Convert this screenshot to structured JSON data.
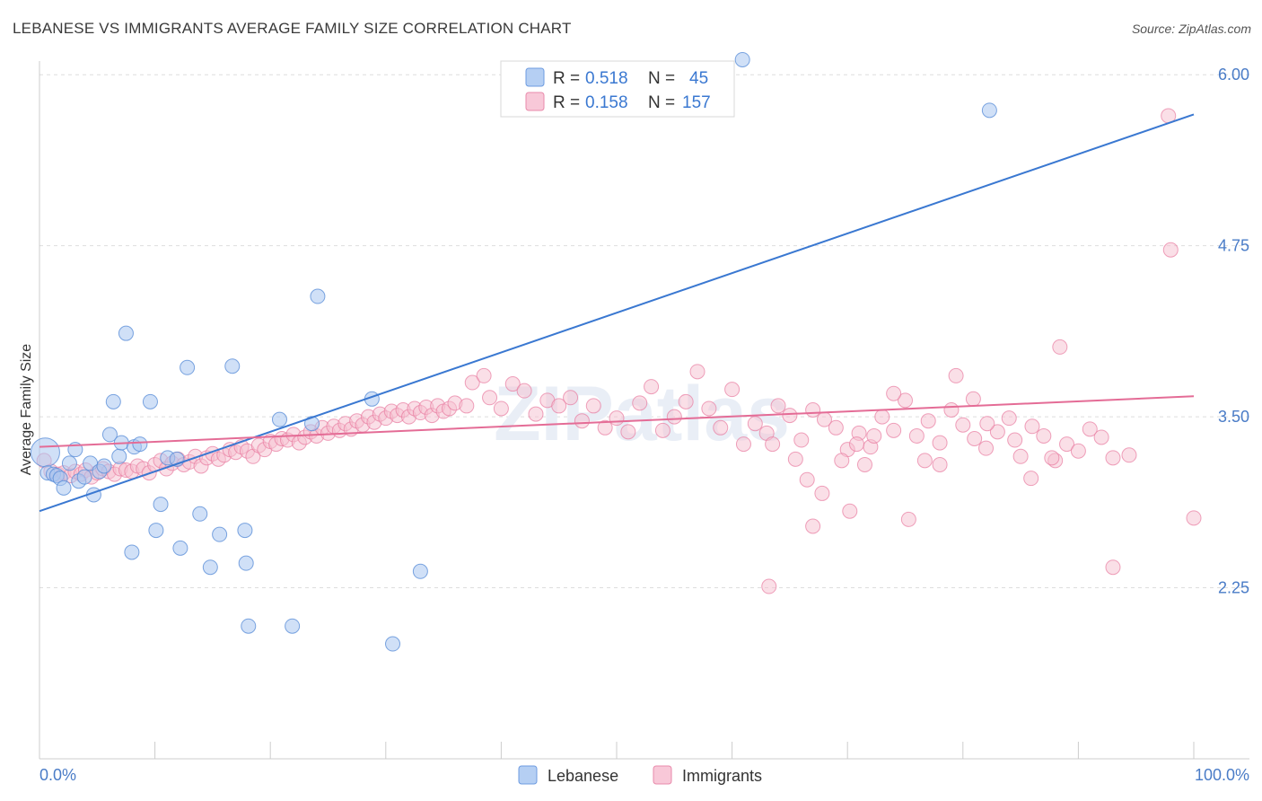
{
  "title": "LEBANESE VS IMMIGRANTS AVERAGE FAMILY SIZE CORRELATION CHART",
  "source": "Source: ZipAtlas.com",
  "watermark": "ZIPatlas",
  "colors": {
    "blue": "#5b8fd8",
    "blue_fill": "#a9c6f0",
    "blue_line": "#3a78d1",
    "pink": "#e87aa0",
    "pink_fill": "#f6bfd0",
    "pink_line": "#e46c96",
    "axis_text": "#4a7cc7"
  },
  "legend": [
    {
      "series": "Lebanese",
      "r_label": "R =",
      "r_value": "0.518",
      "n_label": "N =",
      "n_value": "45"
    },
    {
      "series": "Immigrants",
      "r_label": "R =",
      "r_value": "0.158",
      "n_label": "N =",
      "n_value": "157"
    }
  ],
  "chart_data": {
    "type": "scatter",
    "title": "LEBANESE VS IMMIGRANTS AVERAGE FAMILY SIZE CORRELATION CHART",
    "xlabel": "",
    "ylabel": "Average Family Size",
    "xlim": [
      0,
      100
    ],
    "ylim": [
      1.0,
      6.1
    ],
    "x_tick_labels": [
      "0.0%",
      "100.0%"
    ],
    "y_ticks": [
      2.25,
      3.5,
      4.75,
      6.0
    ],
    "y_tick_labels": [
      "2.25",
      "3.50",
      "4.75",
      "6.00"
    ],
    "grid": "horizontal dashed",
    "legend_position": "top-center and bottom",
    "series": [
      {
        "name": "Lebanese",
        "color": "#5b8fd8",
        "trend": {
          "x": [
            0,
            100
          ],
          "y": [
            2.81,
            5.71
          ]
        },
        "points": [
          [
            0.5,
            3.24
          ],
          [
            0.7,
            3.09
          ],
          [
            1.2,
            3.08
          ],
          [
            1.5,
            3.07
          ],
          [
            1.8,
            3.05
          ],
          [
            2.1,
            2.98
          ],
          [
            2.6,
            3.16
          ],
          [
            3.1,
            3.26
          ],
          [
            3.4,
            3.03
          ],
          [
            3.9,
            3.06
          ],
          [
            4.4,
            3.16
          ],
          [
            4.7,
            2.93
          ],
          [
            5.2,
            3.1
          ],
          [
            5.6,
            3.14
          ],
          [
            6.1,
            3.37
          ],
          [
            6.4,
            3.61
          ],
          [
            6.9,
            3.21
          ],
          [
            7.1,
            3.31
          ],
          [
            7.5,
            4.11
          ],
          [
            8.2,
            3.28
          ],
          [
            8.7,
            3.3
          ],
          [
            9.6,
            3.61
          ],
          [
            10.5,
            2.86
          ],
          [
            11.1,
            3.2
          ],
          [
            11.9,
            3.19
          ],
          [
            12.8,
            3.86
          ],
          [
            13.9,
            2.79
          ],
          [
            14.8,
            2.4
          ],
          [
            15.6,
            2.64
          ],
          [
            16.7,
            3.87
          ],
          [
            17.9,
            2.43
          ],
          [
            20.8,
            3.48
          ],
          [
            23.6,
            3.45
          ],
          [
            24.1,
            4.38
          ],
          [
            28.8,
            3.63
          ],
          [
            33.0,
            2.37
          ],
          [
            60.9,
            6.11
          ],
          [
            82.3,
            5.74
          ],
          [
            8.0,
            2.51
          ],
          [
            10.1,
            2.67
          ],
          [
            17.8,
            2.67
          ],
          [
            12.2,
            2.54
          ],
          [
            18.1,
            1.97
          ],
          [
            21.9,
            1.97
          ],
          [
            30.6,
            1.84
          ]
        ]
      },
      {
        "name": "Immigrants",
        "color": "#e87aa0",
        "trend": {
          "x": [
            0,
            100
          ],
          "y": [
            3.28,
            3.65
          ]
        },
        "points": [
          [
            0.4,
            3.18
          ],
          [
            1.0,
            3.1
          ],
          [
            1.6,
            3.08
          ],
          [
            2.1,
            3.09
          ],
          [
            2.7,
            3.07
          ],
          [
            3.1,
            3.1
          ],
          [
            3.6,
            3.08
          ],
          [
            4.0,
            3.11
          ],
          [
            4.5,
            3.06
          ],
          [
            5.0,
            3.09
          ],
          [
            5.5,
            3.12
          ],
          [
            6.0,
            3.1
          ],
          [
            6.5,
            3.08
          ],
          [
            7.0,
            3.12
          ],
          [
            7.5,
            3.11
          ],
          [
            8.0,
            3.1
          ],
          [
            8.5,
            3.14
          ],
          [
            9.0,
            3.12
          ],
          [
            9.5,
            3.09
          ],
          [
            10.0,
            3.15
          ],
          [
            10.5,
            3.18
          ],
          [
            11.0,
            3.12
          ],
          [
            11.5,
            3.16
          ],
          [
            12.0,
            3.19
          ],
          [
            12.5,
            3.15
          ],
          [
            13.0,
            3.17
          ],
          [
            13.5,
            3.21
          ],
          [
            14.0,
            3.14
          ],
          [
            14.5,
            3.2
          ],
          [
            15.0,
            3.23
          ],
          [
            15.5,
            3.19
          ],
          [
            16.0,
            3.22
          ],
          [
            16.5,
            3.26
          ],
          [
            17.0,
            3.24
          ],
          [
            17.5,
            3.28
          ],
          [
            18.0,
            3.25
          ],
          [
            18.5,
            3.21
          ],
          [
            19.0,
            3.29
          ],
          [
            19.5,
            3.26
          ],
          [
            20.0,
            3.32
          ],
          [
            20.5,
            3.3
          ],
          [
            21.0,
            3.34
          ],
          [
            21.5,
            3.33
          ],
          [
            22.0,
            3.37
          ],
          [
            22.5,
            3.31
          ],
          [
            23.0,
            3.35
          ],
          [
            23.5,
            3.39
          ],
          [
            24.0,
            3.36
          ],
          [
            24.5,
            3.42
          ],
          [
            25.0,
            3.38
          ],
          [
            25.5,
            3.43
          ],
          [
            26.0,
            3.4
          ],
          [
            26.5,
            3.45
          ],
          [
            27.0,
            3.41
          ],
          [
            27.5,
            3.47
          ],
          [
            28.0,
            3.44
          ],
          [
            28.5,
            3.5
          ],
          [
            29.0,
            3.46
          ],
          [
            29.5,
            3.52
          ],
          [
            30.0,
            3.49
          ],
          [
            30.5,
            3.54
          ],
          [
            31.0,
            3.51
          ],
          [
            31.5,
            3.55
          ],
          [
            32.0,
            3.5
          ],
          [
            32.5,
            3.56
          ],
          [
            33.0,
            3.53
          ],
          [
            33.5,
            3.57
          ],
          [
            34.0,
            3.51
          ],
          [
            34.5,
            3.58
          ],
          [
            35.0,
            3.54
          ],
          [
            35.5,
            3.56
          ],
          [
            36.0,
            3.6
          ],
          [
            37.0,
            3.58
          ],
          [
            37.5,
            3.75
          ],
          [
            38.5,
            3.8
          ],
          [
            39.0,
            3.64
          ],
          [
            40.0,
            3.56
          ],
          [
            41.0,
            3.74
          ],
          [
            42.0,
            3.69
          ],
          [
            43.0,
            3.52
          ],
          [
            44.0,
            3.62
          ],
          [
            45.0,
            3.58
          ],
          [
            46.0,
            3.64
          ],
          [
            47.0,
            3.47
          ],
          [
            48.0,
            3.58
          ],
          [
            49.0,
            3.42
          ],
          [
            50.0,
            3.49
          ],
          [
            51.0,
            3.39
          ],
          [
            52.0,
            3.6
          ],
          [
            53.0,
            3.72
          ],
          [
            54.0,
            3.4
          ],
          [
            55.0,
            3.5
          ],
          [
            56.0,
            3.61
          ],
          [
            57.0,
            3.83
          ],
          [
            58.0,
            3.56
          ],
          [
            59.0,
            3.42
          ],
          [
            60.0,
            3.7
          ],
          [
            61.0,
            3.3
          ],
          [
            62.0,
            3.45
          ],
          [
            63.0,
            3.38
          ],
          [
            64.0,
            3.58
          ],
          [
            65.0,
            3.51
          ],
          [
            66.0,
            3.33
          ],
          [
            67.0,
            3.55
          ],
          [
            68.0,
            3.48
          ],
          [
            69.0,
            3.42
          ],
          [
            70.0,
            3.26
          ],
          [
            71.0,
            3.38
          ],
          [
            72.0,
            3.28
          ],
          [
            73.0,
            3.5
          ],
          [
            74.0,
            3.4
          ],
          [
            75.0,
            3.62
          ],
          [
            76.0,
            3.36
          ],
          [
            77.0,
            3.47
          ],
          [
            78.0,
            3.31
          ],
          [
            79.0,
            3.55
          ],
          [
            80.0,
            3.44
          ],
          [
            81.0,
            3.34
          ],
          [
            82.0,
            3.27
          ],
          [
            83.0,
            3.39
          ],
          [
            84.0,
            3.49
          ],
          [
            85.0,
            3.21
          ],
          [
            86.0,
            3.43
          ],
          [
            87.0,
            3.36
          ],
          [
            88.0,
            3.18
          ],
          [
            89.0,
            3.3
          ],
          [
            90.0,
            3.25
          ],
          [
            91.0,
            3.41
          ],
          [
            92.0,
            3.35
          ],
          [
            93.0,
            3.2
          ],
          [
            63.5,
            3.3
          ],
          [
            65.5,
            3.19
          ],
          [
            66.5,
            3.04
          ],
          [
            67.8,
            2.94
          ],
          [
            69.5,
            3.18
          ],
          [
            70.2,
            2.81
          ],
          [
            70.8,
            3.3
          ],
          [
            71.5,
            3.15
          ],
          [
            72.3,
            3.36
          ],
          [
            74.0,
            3.67
          ],
          [
            76.7,
            3.18
          ],
          [
            78.0,
            3.15
          ],
          [
            79.4,
            3.8
          ],
          [
            80.9,
            3.63
          ],
          [
            82.1,
            3.45
          ],
          [
            84.5,
            3.33
          ],
          [
            85.9,
            3.05
          ],
          [
            87.7,
            3.2
          ],
          [
            88.4,
            4.01
          ],
          [
            94.4,
            3.22
          ],
          [
            67.0,
            2.7
          ],
          [
            75.3,
            2.75
          ],
          [
            98.0,
            4.72
          ],
          [
            97.8,
            5.7
          ],
          [
            93.0,
            2.4
          ],
          [
            100.0,
            2.76
          ],
          [
            63.2,
            2.26
          ]
        ]
      }
    ]
  },
  "bottom_legend": [
    {
      "label": "Lebanese"
    },
    {
      "label": "Immigrants"
    }
  ]
}
